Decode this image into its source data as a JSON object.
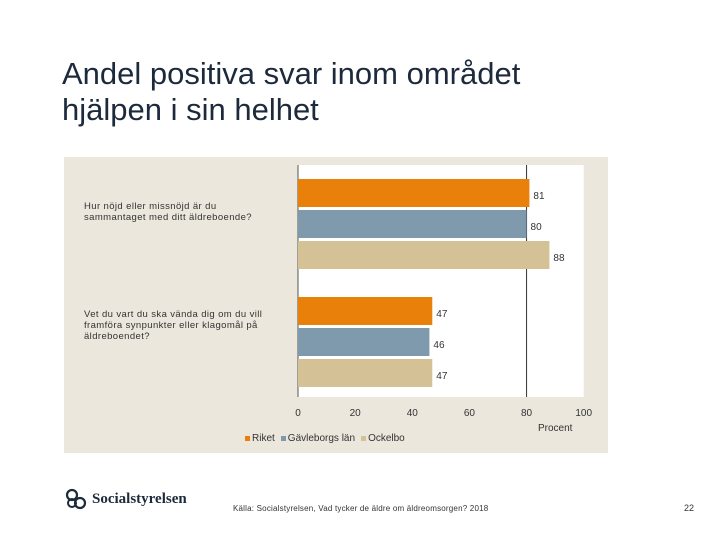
{
  "title": {
    "line1": "Andel positiva svar inom området",
    "line2": "hjälpen i sin helhet"
  },
  "chart_data": {
    "type": "bar",
    "orientation": "horizontal",
    "categories": [
      "Hur nöjd eller missnöjd är du sammantaget med ditt äldreboende?",
      "Vet du vart du ska vända dig om du vill framföra synpunkter eller klagomål på äldreboendet?"
    ],
    "category_lines": [
      [
        "Hur nöjd eller missnöjd är du",
        "sammantaget med ditt äldreboende?"
      ],
      [
        "Vet du vart du ska vända dig om du vill",
        "framföra synpunkter eller klagomål på",
        "äldreboendet?"
      ]
    ],
    "series": [
      {
        "name": "Riket",
        "color": "#e8800a",
        "values": [
          81,
          47
        ]
      },
      {
        "name": "Gävleborgs län",
        "color": "#7f9aac",
        "values": [
          80,
          46
        ]
      },
      {
        "name": "Ockelbo",
        "color": "#d4c195",
        "values": [
          88,
          47
        ]
      }
    ],
    "xlim": [
      0,
      100
    ],
    "xticks": [
      0,
      20,
      40,
      60,
      80,
      100
    ],
    "xlabel": "Procent",
    "gridlines": [
      80
    ],
    "legend_position": "bottom"
  },
  "footer": {
    "logo_text": "Socialstyrelsen",
    "source": "Källa: Socialstyrelsen, Vad tycker de äldre om äldreomsorgen? 2018",
    "page_number": "22"
  }
}
